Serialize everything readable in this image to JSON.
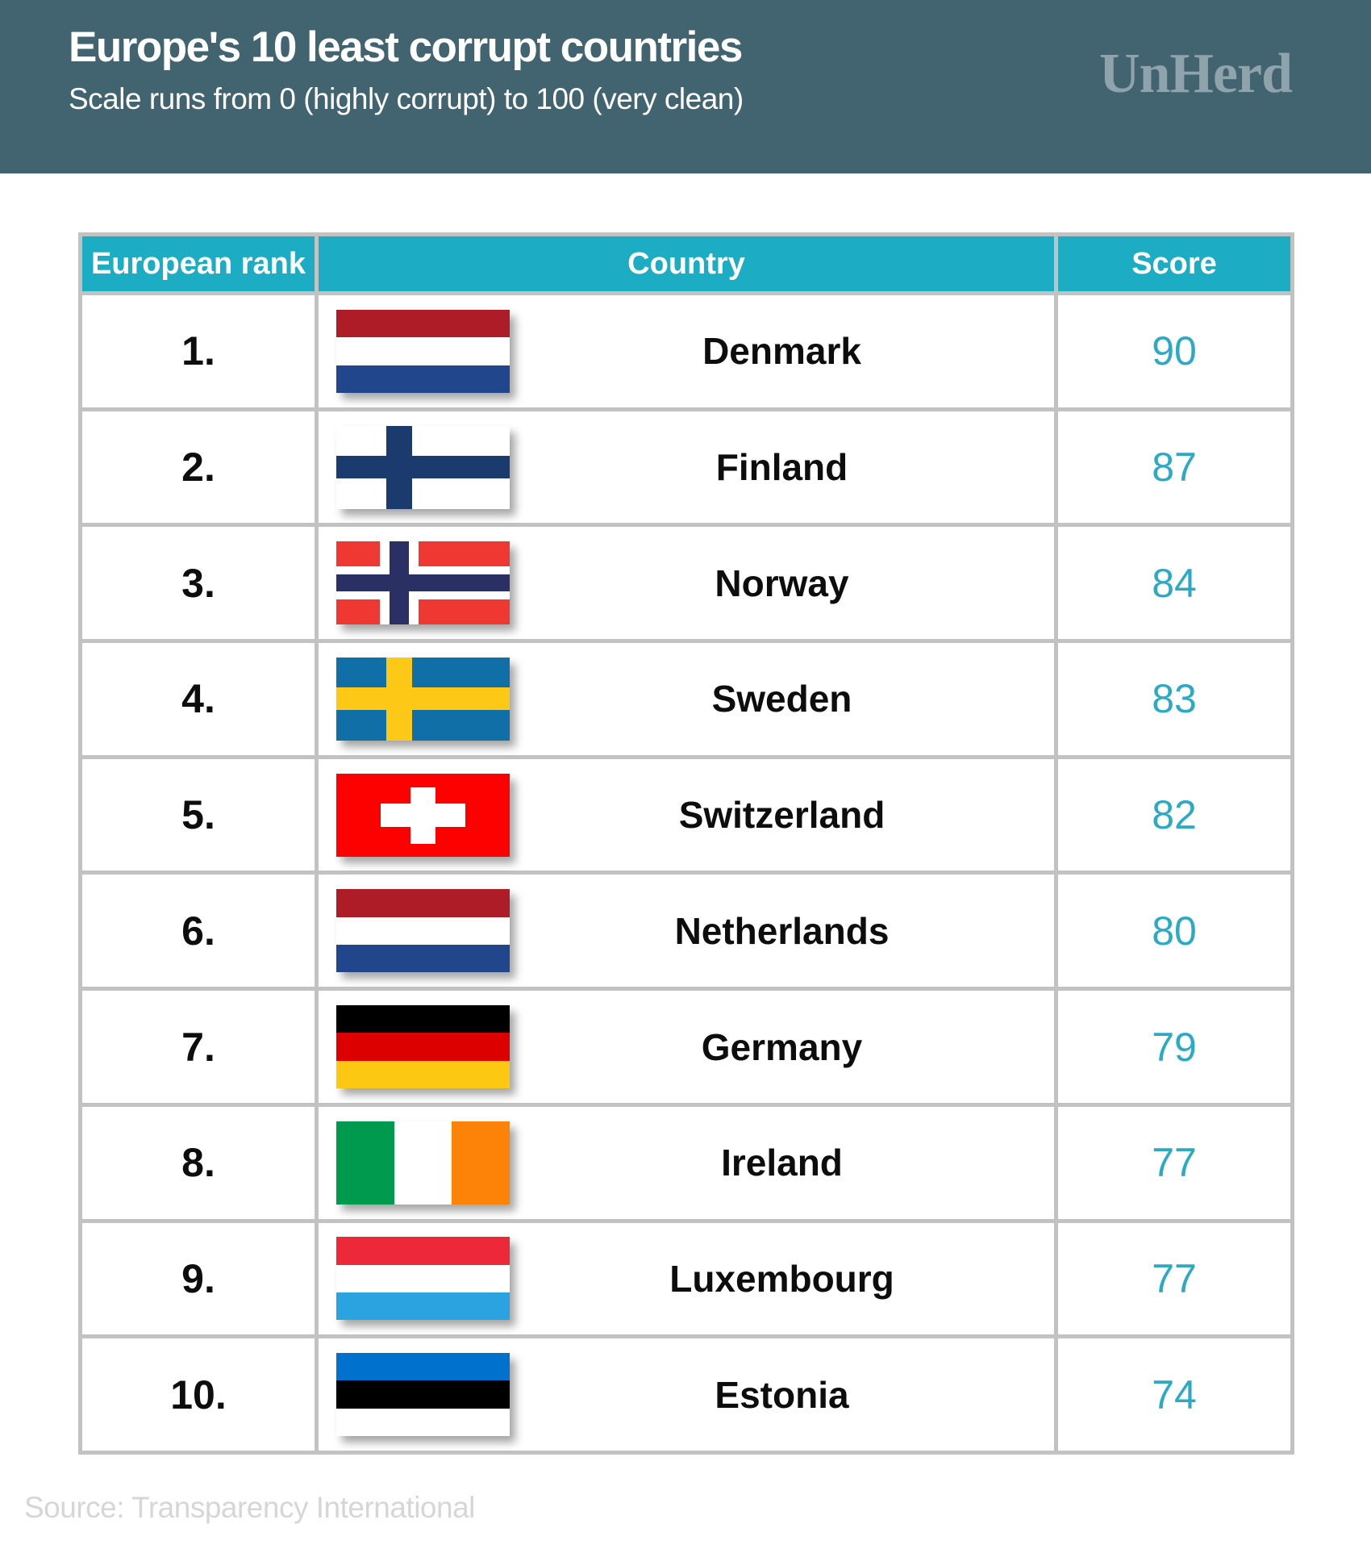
{
  "header": {
    "title": "Europe's 10 least corrupt countries",
    "subtitle": "Scale runs from 0 (highly corrupt) to 100 (very clean)",
    "logo": "UnHerd"
  },
  "table": {
    "columns": [
      "European rank",
      "Country",
      "Score"
    ]
  },
  "source": "Source: Transparency International",
  "colors": {
    "banner_bg": "#426470",
    "logo_gray": "#8EA3AB",
    "table_header_bg": "#1cacc4",
    "score_text": "#2baac5",
    "grid_line": "#c2c2c2"
  },
  "chart_data": {
    "type": "table",
    "title": "Europe's 10 least corrupt countries",
    "subtitle": "Scale runs from 0 (highly corrupt) to 100 (very clean)",
    "columns": [
      "European rank",
      "Country",
      "Score"
    ],
    "rows": [
      {
        "rank": "1.",
        "country": "Denmark",
        "score": 90,
        "flag": {
          "type": "hstripes",
          "stripes": [
            "#ae1c28",
            "#ffffff",
            "#21468b"
          ]
        }
      },
      {
        "rank": "2.",
        "country": "Finland",
        "score": 87,
        "flag": {
          "type": "nordic",
          "bg": "#ffffff",
          "cross": "#1b3a6e"
        }
      },
      {
        "rank": "3.",
        "country": "Norway",
        "score": 84,
        "flag": {
          "type": "nordic-outline",
          "bg": "#ef3832",
          "outer": "#ffffff",
          "inner": "#2a3063"
        }
      },
      {
        "rank": "4.",
        "country": "Sweden",
        "score": 83,
        "flag": {
          "type": "nordic",
          "bg": "#0f6fa6",
          "cross": "#fdc916"
        }
      },
      {
        "rank": "5.",
        "country": "Switzerland",
        "score": 82,
        "flag": {
          "type": "cross",
          "bg": "#fd0000",
          "cross": "#ffffff"
        }
      },
      {
        "rank": "6.",
        "country": "Netherlands",
        "score": 80,
        "flag": {
          "type": "hstripes",
          "stripes": [
            "#ae1c28",
            "#ffffff",
            "#21468b"
          ]
        }
      },
      {
        "rank": "7.",
        "country": "Germany",
        "score": 79,
        "flag": {
          "type": "hstripes",
          "stripes": [
            "#000000",
            "#dd0000",
            "#fdc812"
          ]
        }
      },
      {
        "rank": "8.",
        "country": "Ireland",
        "score": 77,
        "flag": {
          "type": "vstripes",
          "stripes": [
            "#009a4e",
            "#ffffff",
            "#fd8308"
          ]
        }
      },
      {
        "rank": "9.",
        "country": "Luxembourg",
        "score": 77,
        "flag": {
          "type": "hstripes",
          "stripes": [
            "#ed2939",
            "#ffffff",
            "#2ba3e0"
          ]
        }
      },
      {
        "rank": "10.",
        "country": "Estonia",
        "score": 74,
        "flag": {
          "type": "hstripes",
          "stripes": [
            "#0072ce",
            "#000000",
            "#ffffff"
          ]
        }
      }
    ],
    "source": "Source: Transparency International"
  }
}
